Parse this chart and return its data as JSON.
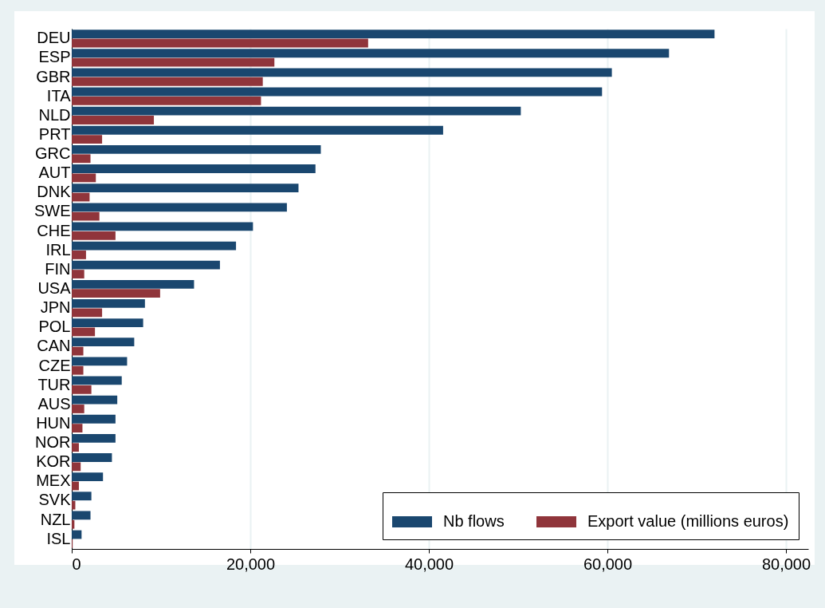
{
  "chart_data": {
    "type": "bar",
    "orientation": "horizontal",
    "categories": [
      "DEU",
      "ESP",
      "GBR",
      "ITA",
      "NLD",
      "PRT",
      "GRC",
      "AUT",
      "DNK",
      "SWE",
      "CHE",
      "IRL",
      "FIN",
      "USA",
      "JPN",
      "POL",
      "CAN",
      "CZE",
      "TUR",
      "AUS",
      "HUN",
      "NOR",
      "KOR",
      "MEX",
      "SVK",
      "NZL",
      "ISL"
    ],
    "series": [
      {
        "name": "Nb flows",
        "color": "#1a476f",
        "values": [
          72000,
          66900,
          60500,
          59400,
          50300,
          41600,
          27900,
          27300,
          25400,
          24100,
          20300,
          18400,
          16600,
          13700,
          8200,
          8000,
          7000,
          6200,
          5600,
          5100,
          4900,
          4900,
          4500,
          3500,
          2200,
          2100,
          1100
        ]
      },
      {
        "name": "Export value (millions euros)",
        "color": "#90353b",
        "values": [
          33200,
          22700,
          21400,
          21200,
          9200,
          3400,
          2100,
          2700,
          2000,
          3100,
          4900,
          1600,
          1400,
          9900,
          3400,
          2600,
          1300,
          1300,
          2200,
          1400,
          1200,
          800,
          1000,
          800,
          400,
          300,
          100
        ]
      }
    ],
    "xlim": [
      0,
      82500
    ],
    "xticks": [
      0,
      {
        "value": 20000,
        "label": "20,000"
      },
      {
        "value": 40000,
        "label": "40,000"
      },
      {
        "value": 60000,
        "label": "60,000"
      },
      {
        "value": 80000,
        "label": "80,000"
      }
    ],
    "grid": "x",
    "legend": "bottom right"
  }
}
